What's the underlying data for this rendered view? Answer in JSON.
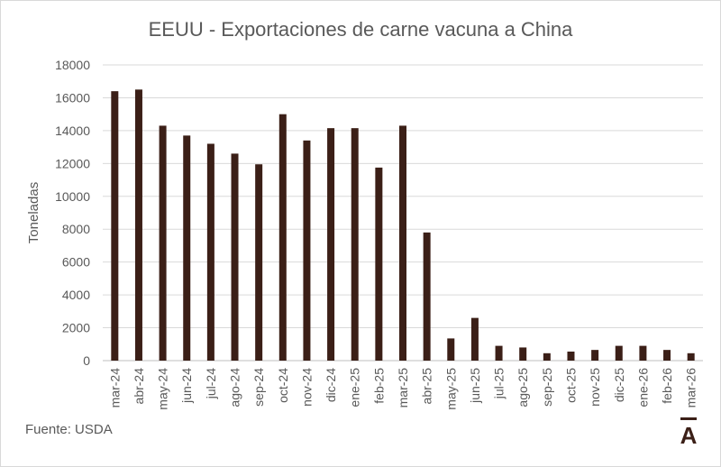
{
  "chart_data": {
    "type": "bar",
    "title": "EEUU - Exportaciones de carne vacuna a China",
    "ylabel": "Toneladas",
    "xlabel": "",
    "ylim": [
      0,
      18000
    ],
    "yticks": [
      0,
      2000,
      4000,
      6000,
      8000,
      10000,
      12000,
      14000,
      16000,
      18000
    ],
    "grid": true,
    "bar_color": "#3b1f17",
    "categories": [
      "mar-24",
      "abr-24",
      "may-24",
      "jun-24",
      "jul-24",
      "ago-24",
      "sep-24",
      "oct-24",
      "nov-24",
      "dic-24",
      "ene-25",
      "feb-25",
      "mar-25",
      "abr-25",
      "may-25",
      "jun-25",
      "jul-25",
      "ago-25",
      "sep-25",
      "oct-25",
      "nov-25",
      "dic-25",
      "ene-26",
      "feb-26",
      "mar-26"
    ],
    "values": [
      16400,
      16500,
      14300,
      13700,
      13200,
      12600,
      11950,
      15000,
      13400,
      14150,
      14150,
      11750,
      14300,
      7800,
      1350,
      2600,
      900,
      800,
      450,
      550,
      650,
      900,
      900,
      650,
      450
    ]
  },
  "source": "Fuente: USDA",
  "logo_text": "A"
}
